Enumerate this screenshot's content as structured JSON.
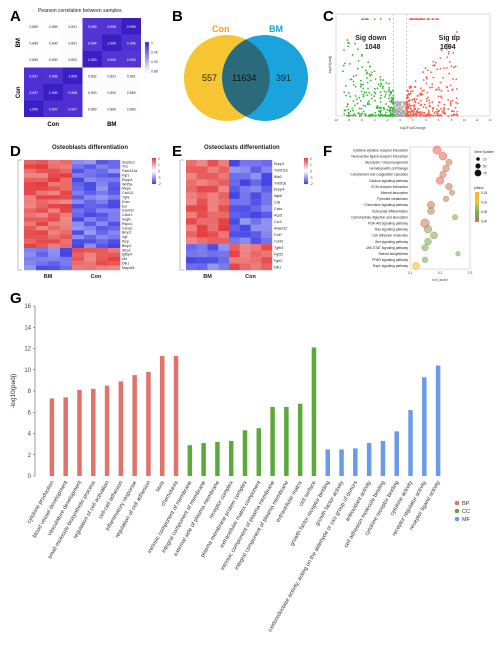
{
  "panels": {
    "a": "A",
    "b": "B",
    "c": "C",
    "d": "D",
    "e": "E",
    "f": "F",
    "g": "G"
  },
  "heatmap_a": {
    "title": "Pearson correlation between samples",
    "row_groups": [
      "BM",
      "Con"
    ],
    "col_groups": [
      "Con",
      "BM"
    ],
    "values": [
      [
        "0.889",
        "0.889",
        "0.891",
        "0.993",
        "0.995",
        "0.999"
      ],
      [
        "0.889",
        "0.890",
        "0.891",
        "0.994",
        "1.000",
        "0.996"
      ],
      [
        "0.889",
        "0.890",
        "0.892",
        "1.000",
        "0.994",
        "0.993"
      ],
      [
        "0.997",
        "0.996",
        "1.000",
        "0.892",
        "0.891",
        "0.891"
      ],
      [
        "0.997",
        "1.000",
        "0.996",
        "0.890",
        "0.890",
        "0.889"
      ],
      [
        "1.000",
        "0.997",
        "0.997",
        "0.889",
        "0.889",
        "0.889"
      ]
    ],
    "legend_ticks": [
      "1",
      "0.96",
      "0.92",
      "0.88"
    ]
  },
  "venn": {
    "left_label": "Con",
    "right_label": "BM",
    "left_only": "557",
    "overlap": "11634",
    "right_only": "391",
    "left_color": "#f7c531",
    "right_color": "#1aa3dd",
    "overlap_color": "#2a6a7a"
  },
  "volcano": {
    "down_label": "Sig down",
    "down_count": "1048",
    "up_label": "Sig up",
    "up_count": "1094",
    "xlabel": "log2FoldChange",
    "ylabel": "-log10(padj)",
    "x_ticks": [
      "-10",
      "-8",
      "-6",
      "-4",
      "-2",
      "0",
      "2",
      "4",
      "6",
      "8",
      "10",
      "12",
      "14"
    ],
    "down_color": "#3cb33c",
    "up_color": "#f0614d"
  },
  "heatmap_d": {
    "title": "Osteoblasts differentiation",
    "genes": [
      "Sostdc2",
      "Tnc",
      "Fam241a",
      "Fgf1",
      "Enpp4",
      "Wnt5a",
      "Mepe",
      "Cxcl13",
      "Tgfa",
      "Dner",
      "Ezr",
      "Gremt1",
      "Ccbe1",
      "Vegfc",
      "Rspo1",
      "Ccna2",
      "Bmp2",
      "Vgf",
      "Ibsp",
      "Bmp2",
      "Sfrp2",
      "Igfbp4",
      "Id4",
      "Dlk1",
      "Map4k1"
    ],
    "group_left": "BM",
    "group_right": "Con",
    "legend_ticks": [
      "2",
      "1",
      "0",
      "-1",
      "-2"
    ]
  },
  "heatmap_e": {
    "title": "Osteoclasts differentiation",
    "genes": [
      "Enpp3",
      "Tnfsf11b",
      "Mia2",
      "Tnfsf18",
      "Enpp4",
      "Itgb6",
      "Ctsl",
      "Calcr",
      "Acp5",
      "Ccr4",
      "Adam22",
      "Fzd7",
      "Col10",
      "Tgfb3",
      "Fgf22",
      "Fgfr2",
      "Dlk1"
    ],
    "group_left": "BM",
    "group_right": "Con",
    "legend_ticks": [
      "2",
      "1",
      "0",
      "-1",
      "-2"
    ]
  },
  "kegg": {
    "terms": [
      "Cytokine-cytokine receptor interaction",
      "Neuroactive ligand-receptor interaction",
      "Glycolysis / Gluconeogenesis",
      "Hematopoietic cell lineage",
      "Complement and coagulation cascades",
      "Calcium signaling pathway",
      "ECM-receptor interaction",
      "Mineral absorption",
      "Pyruvate metabolism",
      "Chemokine signaling pathway",
      "Osteoclast differentiation",
      "Carbohydrate digestion and absorption",
      "PI3K-Akt signaling pathway",
      "Ras signaling pathway",
      "Cell adhesion molecules",
      "Wnt signaling pathway",
      "JAK-STAT signaling pathway",
      "Steroid biosynthesis",
      "PPAR signaling pathway",
      "Rap1 signaling pathway"
    ],
    "rich_factor": [
      0.19,
      0.21,
      0.23,
      0.22,
      0.21,
      0.2,
      0.23,
      0.24,
      0.22,
      0.17,
      0.17,
      0.25,
      0.15,
      0.16,
      0.18,
      0.16,
      0.15,
      0.26,
      0.15,
      0.12
    ],
    "gene_number": [
      70,
      60,
      30,
      40,
      35,
      55,
      40,
      20,
      25,
      50,
      45,
      20,
      80,
      55,
      45,
      40,
      35,
      12,
      25,
      50
    ],
    "pvalue": [
      0.0,
      0.0,
      0.01,
      0.01,
      0.01,
      0.0,
      0.01,
      0.02,
      0.02,
      0.01,
      0.02,
      0.03,
      0.01,
      0.03,
      0.03,
      0.04,
      0.04,
      0.05,
      0.04,
      0.15
    ],
    "x_ticks": [
      "0.1",
      "0.2",
      "0.3"
    ],
    "xlim": [
      0.1,
      0.3
    ],
    "xlabel": "rich_factor",
    "size_legend_title": "Gene Number",
    "size_legend": [
      "10",
      "50",
      "75"
    ],
    "color_legend_title": "pValue",
    "color_legend": [
      "0.15",
      "0.10",
      "0.05",
      "0.00"
    ]
  },
  "chart_data": {
    "type": "bar",
    "ylabel": "-log10(padj)",
    "ylim": [
      0,
      16
    ],
    "y_ticks": [
      "0",
      "2",
      "4",
      "6",
      "8",
      "10",
      "12",
      "14",
      "16"
    ],
    "legend_placement": "right",
    "categories": [
      "cytokine production",
      "blood vessel development",
      "vasculature development",
      "small molecule biosynthetic process",
      "regulation of cell activation",
      "cell-cell adhesion",
      "inflammatory response",
      "regulation of cell adhesion",
      "taxis",
      "chemotaxis",
      "intrinsic component of membrane",
      "integral component of membrane",
      "external side of plasma membrane",
      "receptor complex",
      "plasma membrane protein complex",
      "extracellular matrix component",
      "intrinsic component of plasma membrane",
      "integral component of plasma membrane",
      "extracellular matrix",
      "cell surface",
      "growth factor receptor binding",
      "growth factor activity",
      "oxidoreductase activity, acting on the aldehyde or oxo group of donors",
      "antioxidant activity",
      "cell adhesion molecule binding",
      "cytokine receptor binding",
      "cytokine activity",
      "receptor regulator activity",
      "receptor ligand activity"
    ],
    "series": [
      {
        "name": "BP",
        "color": "#e0736a",
        "values": [
          7.3,
          7.4,
          8.1,
          8.2,
          8.5,
          8.9,
          9.5,
          9.8,
          11.3,
          11.3,
          null,
          null,
          null,
          null,
          null,
          null,
          null,
          null,
          null,
          null,
          null,
          null,
          null,
          null,
          null,
          null,
          null,
          null,
          null
        ]
      },
      {
        "name": "CC",
        "color": "#5daa3c",
        "values": [
          null,
          null,
          null,
          null,
          null,
          null,
          null,
          null,
          null,
          null,
          2.9,
          3.1,
          3.2,
          3.3,
          4.3,
          4.5,
          6.5,
          6.5,
          6.8,
          12.1,
          null,
          null,
          null,
          null,
          null,
          null,
          null,
          null,
          null
        ]
      },
      {
        "name": "MF",
        "color": "#6a9be8",
        "values": [
          null,
          null,
          null,
          null,
          null,
          null,
          null,
          null,
          null,
          null,
          null,
          null,
          null,
          null,
          null,
          null,
          null,
          null,
          null,
          null,
          2.5,
          2.5,
          2.6,
          3.1,
          3.3,
          4.2,
          6.2,
          9.3,
          10.4
        ]
      }
    ]
  }
}
